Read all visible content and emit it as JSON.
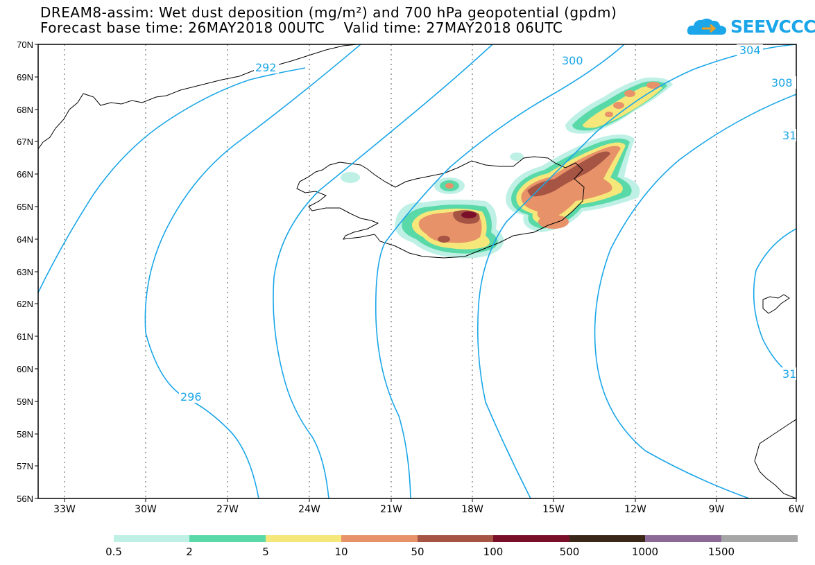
{
  "title": {
    "line1": "DREAM8-assim: Wet dust deposition (mg/m²) and 700 hPa geopotential (gpdm)",
    "line2": "Forecast base time: 26MAY2018 00UTC    Valid time: 27MAY2018 06UTC"
  },
  "logo": {
    "text": "SEEVCCC",
    "icon": "cloud-icon",
    "color": "#1aa6e8"
  },
  "axes": {
    "lat_labels": [
      "70N",
      "69N",
      "68N",
      "67N",
      "66N",
      "65N",
      "64N",
      "63N",
      "62N",
      "61N",
      "60N",
      "59N",
      "58N",
      "57N",
      "56N"
    ],
    "lon_labels": [
      "33W",
      "30W",
      "27W",
      "24W",
      "21W",
      "18W",
      "15W",
      "12W",
      "9W",
      "6W"
    ]
  },
  "contours": {
    "color": "#1aa6e8",
    "labels": [
      "292",
      "296",
      "300",
      "304",
      "308",
      "31",
      "31"
    ]
  },
  "colorbar": {
    "labels": [
      "0.5",
      "2",
      "5",
      "10",
      "50",
      "100",
      "500",
      "1000",
      "1500"
    ],
    "colors": [
      "#bff0e6",
      "#5ad9a8",
      "#f5e77a",
      "#e8926a",
      "#a65443",
      "#7a0f2a",
      "#3a2718",
      "#8c6a98",
      "#a6a6a6"
    ]
  }
}
